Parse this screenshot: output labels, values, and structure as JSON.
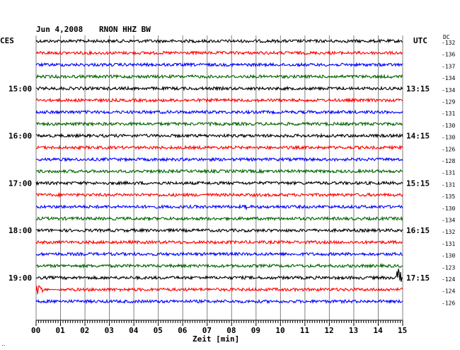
{
  "header": {
    "date": "Jun 4,2008",
    "station": "RNON HHZ BW",
    "left_zone": "CES",
    "right_zone": "UTC",
    "dc_label": "DC"
  },
  "colors": {
    "trace_cycle": [
      "#000000",
      "#ff0000",
      "#0000ff",
      "#006400"
    ],
    "grid": "#808080"
  },
  "chart_data": {
    "type": "line",
    "title": "Jun 4,2008   RNON HHZ BW",
    "xlabel": "Zeit [min]",
    "ylabel": "",
    "xlim": [
      0,
      15
    ],
    "x_ticks": [
      "00",
      "01",
      "02",
      "03",
      "04",
      "05",
      "06",
      "07",
      "08",
      "09",
      "10",
      "11",
      "12",
      "13",
      "14",
      "15"
    ],
    "left_time_labels": [
      {
        "row": 4,
        "label": "15:00"
      },
      {
        "row": 8,
        "label": "16:00"
      },
      {
        "row": 12,
        "label": "17:00"
      },
      {
        "row": 16,
        "label": "18:00"
      },
      {
        "row": 20,
        "label": "19:00"
      }
    ],
    "right_time_labels": [
      {
        "row": 4,
        "label": "13:15"
      },
      {
        "row": 8,
        "label": "14:15"
      },
      {
        "row": 12,
        "label": "15:15"
      },
      {
        "row": 16,
        "label": "16:15"
      },
      {
        "row": 20,
        "label": "17:15"
      }
    ],
    "dc_offsets": [
      -132,
      -136,
      -137,
      -134,
      -134,
      -129,
      -131,
      -130,
      -130,
      -126,
      -128,
      -131,
      -131,
      -135,
      -130,
      -134,
      -132,
      -131,
      -130,
      -123,
      -124,
      -124,
      -126
    ],
    "trace_count": 23,
    "events": [
      {
        "row": 20,
        "minute": 14.85,
        "description": "large spike"
      },
      {
        "row": 21,
        "minute": 0.15,
        "description": "decaying burst"
      },
      {
        "row": 14,
        "minute": 8.6,
        "description": "spike"
      }
    ],
    "grid": true
  }
}
